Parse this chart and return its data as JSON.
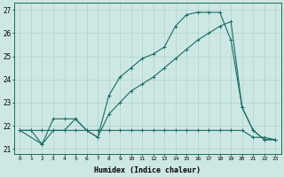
{
  "title": "",
  "xlabel": "Humidex (Indice chaleur)",
  "xlim": [
    -0.5,
    23.5
  ],
  "ylim": [
    20.8,
    27.3
  ],
  "yticks": [
    21,
    22,
    23,
    24,
    25,
    26,
    27
  ],
  "xticks": [
    0,
    1,
    2,
    3,
    4,
    5,
    6,
    7,
    8,
    9,
    10,
    11,
    12,
    13,
    14,
    15,
    16,
    17,
    18,
    19,
    20,
    21,
    22,
    23
  ],
  "bg_color": "#cde8e4",
  "grid_color": "#a8d4cc",
  "line_color": "#1a6b5e",
  "series0_x": [
    0,
    1,
    2,
    3,
    4,
    5,
    6,
    7,
    8,
    9,
    10,
    11,
    12,
    13,
    14,
    15,
    16,
    17,
    18,
    19,
    20,
    21,
    22,
    23
  ],
  "series0_y": [
    21.8,
    21.8,
    21.8,
    21.8,
    21.8,
    21.8,
    21.8,
    21.8,
    21.8,
    21.8,
    21.8,
    21.8,
    21.8,
    21.8,
    21.8,
    21.8,
    21.8,
    21.8,
    21.8,
    21.8,
    21.8,
    21.5,
    21.5,
    21.4
  ],
  "series1_x": [
    0,
    1,
    2,
    3,
    4,
    5,
    6,
    7,
    8,
    9,
    10,
    11,
    12,
    13,
    14,
    15,
    16,
    17,
    18,
    19,
    20,
    21,
    22,
    23
  ],
  "series1_y": [
    21.8,
    21.8,
    21.2,
    22.3,
    22.3,
    22.3,
    21.8,
    21.5,
    23.3,
    24.1,
    24.5,
    24.9,
    25.1,
    25.4,
    26.3,
    26.8,
    26.9,
    26.9,
    26.9,
    25.7,
    22.8,
    21.8,
    21.4,
    21.4
  ],
  "series2_x": [
    0,
    2,
    3,
    4,
    5,
    6,
    7,
    8,
    9,
    10,
    11,
    12,
    13,
    14,
    15,
    16,
    17,
    18,
    19,
    20,
    21,
    22,
    23
  ],
  "series2_y": [
    21.8,
    21.2,
    21.8,
    21.8,
    22.3,
    21.8,
    21.5,
    22.5,
    23.0,
    23.5,
    23.8,
    24.1,
    24.5,
    24.9,
    25.3,
    25.7,
    26.0,
    26.3,
    26.5,
    22.8,
    21.8,
    21.4,
    21.4
  ]
}
